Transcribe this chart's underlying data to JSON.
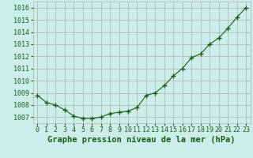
{
  "x": [
    0,
    1,
    2,
    3,
    4,
    5,
    6,
    7,
    8,
    9,
    10,
    11,
    12,
    13,
    14,
    15,
    16,
    17,
    18,
    19,
    20,
    21,
    22,
    23
  ],
  "y": [
    1008.8,
    1008.2,
    1008.0,
    1007.6,
    1007.1,
    1006.9,
    1006.9,
    1007.0,
    1007.3,
    1007.4,
    1007.5,
    1007.8,
    1008.8,
    1009.0,
    1009.6,
    1010.4,
    1011.0,
    1011.9,
    1012.2,
    1013.0,
    1013.5,
    1014.3,
    1015.2,
    1016.0
  ],
  "line_color": "#1a5c1a",
  "marker": "+",
  "marker_size": 4,
  "marker_linewidth": 1.0,
  "background_color": "#cceee8",
  "grid_color": "#b0b0b0",
  "xlabel": "Graphe pression niveau de la mer (hPa)",
  "xlabel_fontsize": 7.5,
  "xlabel_color": "#1a5c1a",
  "ylabel_ticks": [
    1007,
    1008,
    1009,
    1010,
    1011,
    1012,
    1013,
    1014,
    1015,
    1016
  ],
  "ylim": [
    1006.5,
    1016.5
  ],
  "xlim": [
    -0.5,
    23.5
  ],
  "tick_fontsize": 6.0,
  "tick_color": "#1a5c1a",
  "line_width": 0.8,
  "linestyle": "-"
}
